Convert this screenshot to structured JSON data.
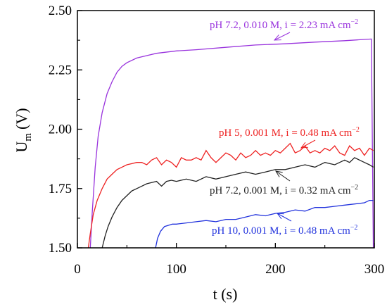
{
  "chart_data": {
    "type": "line",
    "xlabel_main": "t (s)",
    "ylabel_main": "U",
    "ylabel_sub": "m",
    "ylabel_unit": "(V)",
    "xlim": [
      0,
      300
    ],
    "ylim": [
      1.5,
      2.5
    ],
    "x_ticks": [
      0,
      100,
      200,
      300
    ],
    "x_tick_labels": [
      "0",
      "100",
      "200",
      "300"
    ],
    "y_ticks": [
      1.5,
      1.75,
      2.0,
      2.25,
      2.5
    ],
    "y_tick_labels": [
      "1.50",
      "1.75",
      "2.00",
      "2.25",
      "2.50"
    ],
    "grid": false,
    "series": [
      {
        "label_main": "pH 7.2, 0.010 M, i = 2.23 mA cm",
        "label_sup": "−2",
        "color": "#9933dd",
        "x": [
          13,
          15,
          18,
          21,
          25,
          30,
          35,
          40,
          45,
          50,
          60,
          70,
          80,
          100,
          120,
          150,
          180,
          210,
          240,
          270,
          297,
          299
        ],
        "y": [
          1.5,
          1.65,
          1.84,
          1.97,
          2.07,
          2.15,
          2.2,
          2.24,
          2.265,
          2.28,
          2.3,
          2.31,
          2.32,
          2.33,
          2.335,
          2.345,
          2.355,
          2.36,
          2.367,
          2.373,
          2.38,
          1.5
        ]
      },
      {
        "label_main": "pH 5, 0.001 M, i = 0.48 mA cm",
        "label_sup": "−2",
        "color": "#ee2222",
        "x": [
          11,
          13,
          16,
          20,
          25,
          30,
          35,
          40,
          45,
          50,
          55,
          60,
          65,
          70,
          75,
          80,
          85,
          90,
          95,
          100,
          105,
          110,
          115,
          120,
          125,
          130,
          135,
          140,
          145,
          150,
          155,
          160,
          165,
          170,
          175,
          180,
          185,
          190,
          195,
          200,
          205,
          210,
          215,
          220,
          225,
          230,
          235,
          240,
          245,
          250,
          255,
          260,
          265,
          270,
          275,
          280,
          285,
          290,
          295,
          299
        ],
        "y": [
          1.5,
          1.56,
          1.64,
          1.7,
          1.75,
          1.79,
          1.81,
          1.83,
          1.84,
          1.85,
          1.855,
          1.86,
          1.86,
          1.85,
          1.87,
          1.88,
          1.85,
          1.87,
          1.86,
          1.84,
          1.88,
          1.87,
          1.87,
          1.88,
          1.87,
          1.91,
          1.88,
          1.86,
          1.88,
          1.9,
          1.89,
          1.87,
          1.9,
          1.88,
          1.89,
          1.91,
          1.89,
          1.9,
          1.89,
          1.91,
          1.9,
          1.92,
          1.94,
          1.9,
          1.91,
          1.93,
          1.9,
          1.91,
          1.9,
          1.92,
          1.91,
          1.93,
          1.9,
          1.89,
          1.93,
          1.91,
          1.92,
          1.89,
          1.92,
          1.91
        ]
      },
      {
        "label_main": "pH 7.2, 0.001 M, i = 0.32 mA cm",
        "label_sup": "−2",
        "color": "#222222",
        "x": [
          25,
          28,
          31,
          35,
          40,
          45,
          50,
          55,
          60,
          65,
          70,
          75,
          80,
          85,
          90,
          95,
          100,
          110,
          120,
          130,
          140,
          150,
          160,
          170,
          180,
          190,
          200,
          210,
          220,
          230,
          240,
          250,
          260,
          270,
          275,
          280,
          285,
          290,
          295,
          299
        ],
        "y": [
          1.5,
          1.55,
          1.59,
          1.63,
          1.67,
          1.7,
          1.72,
          1.74,
          1.75,
          1.76,
          1.77,
          1.775,
          1.78,
          1.76,
          1.78,
          1.785,
          1.78,
          1.79,
          1.78,
          1.8,
          1.79,
          1.8,
          1.81,
          1.82,
          1.81,
          1.82,
          1.83,
          1.83,
          1.84,
          1.85,
          1.84,
          1.86,
          1.85,
          1.87,
          1.86,
          1.88,
          1.87,
          1.86,
          1.85,
          1.84
        ]
      },
      {
        "label_main": "pH 10, 0.001 M, i = 0.48 mA cm",
        "label_sup": "−2",
        "color": "#2233dd",
        "x": [
          79,
          81,
          84,
          88,
          92,
          96,
          100,
          110,
          120,
          130,
          140,
          150,
          160,
          170,
          180,
          190,
          200,
          210,
          220,
          230,
          240,
          250,
          260,
          270,
          280,
          290,
          295,
          299
        ],
        "y": [
          1.5,
          1.54,
          1.57,
          1.59,
          1.595,
          1.6,
          1.6,
          1.605,
          1.61,
          1.615,
          1.61,
          1.62,
          1.62,
          1.63,
          1.64,
          1.635,
          1.645,
          1.65,
          1.66,
          1.655,
          1.67,
          1.67,
          1.675,
          1.68,
          1.685,
          1.69,
          1.7,
          1.7
        ]
      }
    ]
  }
}
